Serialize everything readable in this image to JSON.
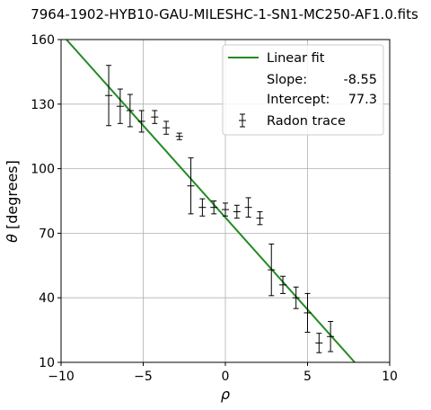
{
  "chart_data": {
    "type": "scatter",
    "title": "7964-1902-HYB10-GAU-MILESHC-1-SN1-MC250-AF1.0.fits",
    "xlabel": "ρ",
    "ylabel_symbol": "θ",
    "ylabel_unit": "[degrees]",
    "xlim": [
      -10,
      10
    ],
    "ylim": [
      10,
      160
    ],
    "xticks": [
      -10,
      -5,
      0,
      5,
      10
    ],
    "yticks": [
      10,
      40,
      70,
      100,
      130,
      160
    ],
    "xtick_labels": [
      "−10",
      "−5",
      "0",
      "5",
      "10"
    ],
    "ytick_labels": [
      "10",
      "40",
      "70",
      "100",
      "130",
      "160"
    ],
    "grid": true,
    "legend_position": "top-right",
    "fit": {
      "name": "Linear fit",
      "slope_label": "Slope:",
      "slope_value": "-8.55",
      "intercept_label": "Intercept:",
      "intercept_value": "77.3",
      "slope": -8.55,
      "intercept": 77.3,
      "color": "#228b22"
    },
    "series": [
      {
        "name": "Radon trace",
        "color": "#000000",
        "points": [
          {
            "x": -7.1,
            "y": 134,
            "err": 14
          },
          {
            "x": -6.4,
            "y": 129,
            "err": 8
          },
          {
            "x": -5.8,
            "y": 127,
            "err": 7.5
          },
          {
            "x": -5.1,
            "y": 122,
            "err": 5
          },
          {
            "x": -4.3,
            "y": 124,
            "err": 3
          },
          {
            "x": -3.6,
            "y": 119,
            "err": 3
          },
          {
            "x": -2.8,
            "y": 115,
            "err": 1.5
          },
          {
            "x": -2.1,
            "y": 92,
            "err": 13
          },
          {
            "x": -1.4,
            "y": 82,
            "err": 4
          },
          {
            "x": -0.7,
            "y": 82,
            "err": 3
          },
          {
            "x": 0.0,
            "y": 81,
            "err": 3
          },
          {
            "x": 0.7,
            "y": 80,
            "err": 3
          },
          {
            "x": 1.4,
            "y": 82,
            "err": 4.5
          },
          {
            "x": 2.1,
            "y": 77,
            "err": 3
          },
          {
            "x": 2.8,
            "y": 53,
            "err": 12
          },
          {
            "x": 3.5,
            "y": 46,
            "err": 4
          },
          {
            "x": 4.3,
            "y": 40,
            "err": 5
          },
          {
            "x": 5.0,
            "y": 33,
            "err": 9
          },
          {
            "x": 5.7,
            "y": 19,
            "err": 4.5
          },
          {
            "x": 6.4,
            "y": 22,
            "err": 7
          }
        ]
      }
    ]
  }
}
